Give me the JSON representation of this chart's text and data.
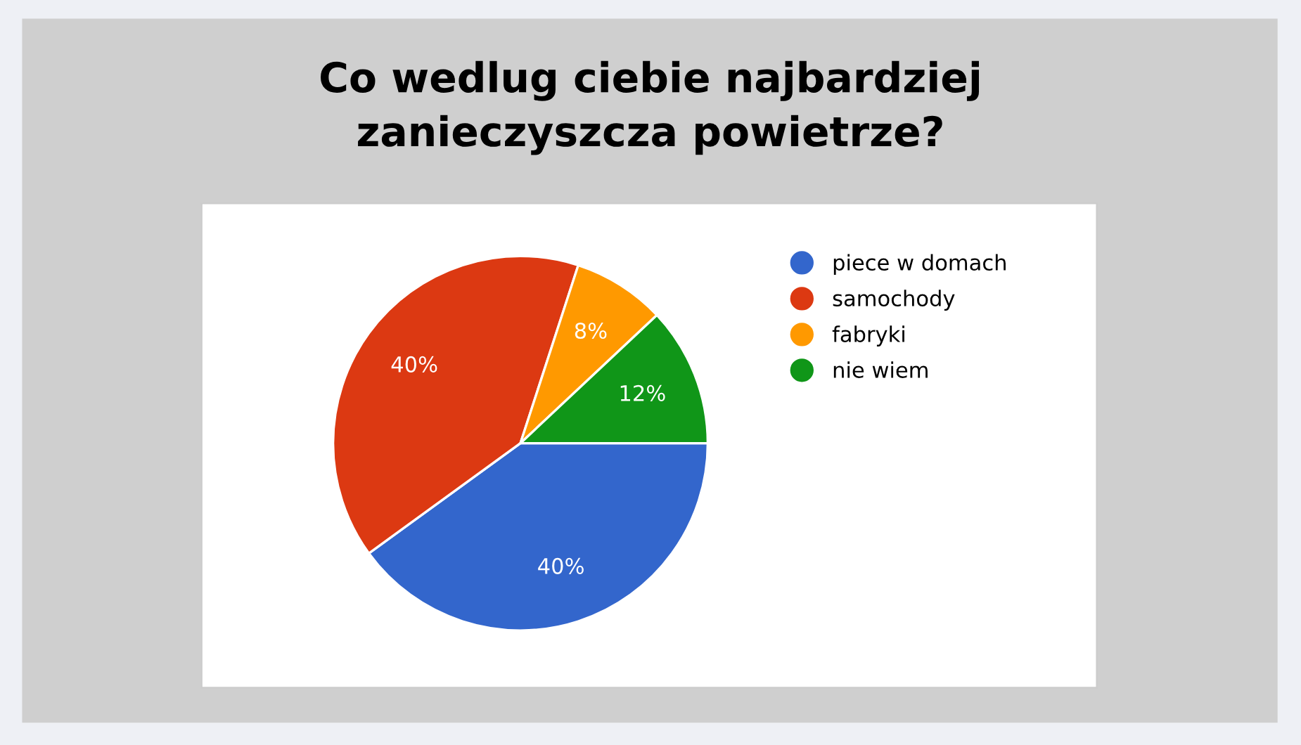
{
  "chart_data": {
    "type": "pie",
    "title": "Co wedlug ciebie najbardziej\nzanieczyszcza powietrze?",
    "categories": [
      "piece w domach",
      "samochody",
      "fabryki",
      "nie wiem"
    ],
    "values": [
      40,
      40,
      8,
      12
    ],
    "colors": [
      "#3366cc",
      "#dc3912",
      "#ff9900",
      "#109618"
    ],
    "value_labels": [
      "40%",
      "40%",
      "8%",
      "12%"
    ],
    "legend": "right"
  }
}
